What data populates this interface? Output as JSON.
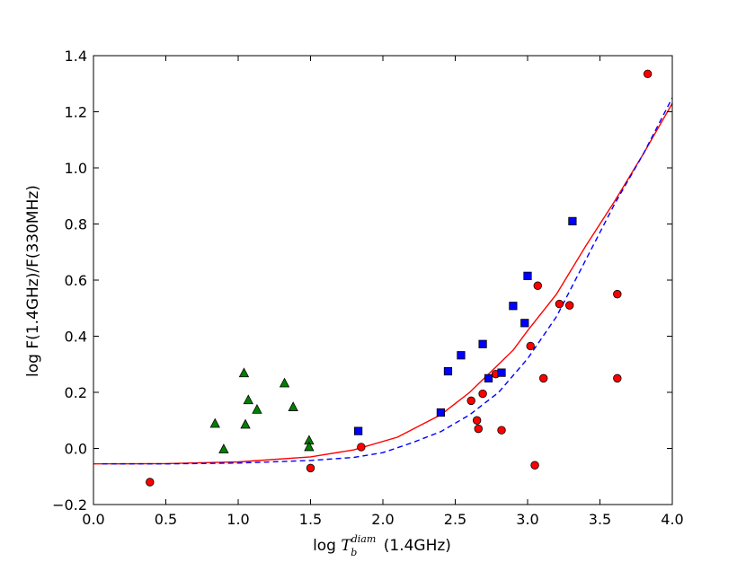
{
  "chart_data": {
    "type": "scatter",
    "xlabel_main": "log ",
    "xlabel_math": "T",
    "xlabel_sub": "b",
    "xlabel_sup": "diam",
    "xlabel_tail": " (1.4GHz)",
    "ylabel": "log F(1.4GHz)/F(330MHz)",
    "xlim": [
      0.0,
      4.0
    ],
    "ylim": [
      -0.2,
      1.4
    ],
    "xticks": [
      "0.0",
      "0.5",
      "1.0",
      "1.5",
      "2.0",
      "2.5",
      "3.0",
      "3.5",
      "4.0"
    ],
    "yticks": [
      "−0.2",
      "0.0",
      "0.2",
      "0.4",
      "0.6",
      "0.8",
      "1.0",
      "1.2",
      "1.4"
    ],
    "series": [
      {
        "marker": "circle",
        "color": "#ff0000",
        "points": [
          [
            0.39,
            -0.12
          ],
          [
            1.5,
            -0.07
          ],
          [
            1.85,
            0.005
          ],
          [
            2.61,
            0.17
          ],
          [
            2.65,
            0.1
          ],
          [
            2.66,
            0.07
          ],
          [
            2.69,
            0.195
          ],
          [
            2.78,
            0.265
          ],
          [
            2.82,
            0.065
          ],
          [
            3.02,
            0.365
          ],
          [
            3.05,
            -0.06
          ],
          [
            3.07,
            0.58
          ],
          [
            3.11,
            0.25
          ],
          [
            3.22,
            0.515
          ],
          [
            3.29,
            0.51
          ],
          [
            3.62,
            0.55
          ],
          [
            3.62,
            0.25
          ],
          [
            3.83,
            1.335
          ]
        ]
      },
      {
        "marker": "square",
        "color": "#0000ff",
        "points": [
          [
            1.83,
            0.062
          ],
          [
            2.4,
            0.128
          ],
          [
            2.45,
            0.275
          ],
          [
            2.54,
            0.332
          ],
          [
            2.69,
            0.372
          ],
          [
            2.73,
            0.25
          ],
          [
            2.82,
            0.27
          ],
          [
            2.9,
            0.508
          ],
          [
            2.98,
            0.447
          ],
          [
            3.0,
            0.615
          ],
          [
            3.31,
            0.81
          ]
        ]
      },
      {
        "marker": "triangle",
        "color": "#008000",
        "points": [
          [
            0.84,
            0.088
          ],
          [
            0.9,
            -0.003
          ],
          [
            1.04,
            0.268
          ],
          [
            1.05,
            0.085
          ],
          [
            1.07,
            0.172
          ],
          [
            1.13,
            0.138
          ],
          [
            1.32,
            0.232
          ],
          [
            1.38,
            0.147
          ],
          [
            1.49,
            0.028
          ],
          [
            1.49,
            0.005
          ]
        ]
      }
    ],
    "curves": [
      {
        "style": "solid",
        "color": "#ff0000",
        "points": [
          [
            0.0,
            -0.055
          ],
          [
            0.5,
            -0.054
          ],
          [
            1.0,
            -0.048
          ],
          [
            1.5,
            -0.03
          ],
          [
            1.8,
            -0.005
          ],
          [
            2.1,
            0.04
          ],
          [
            2.4,
            0.12
          ],
          [
            2.6,
            0.2
          ],
          [
            2.8,
            0.3
          ],
          [
            2.9,
            0.35
          ],
          [
            3.0,
            0.42
          ],
          [
            3.2,
            0.55
          ],
          [
            3.4,
            0.72
          ],
          [
            3.6,
            0.88
          ],
          [
            3.8,
            1.05
          ],
          [
            4.0,
            1.23
          ]
        ]
      },
      {
        "style": "dashed",
        "color": "#0000ff",
        "points": [
          [
            0.06,
            -0.055
          ],
          [
            0.5,
            -0.055
          ],
          [
            1.0,
            -0.052
          ],
          [
            1.5,
            -0.043
          ],
          [
            1.8,
            -0.032
          ],
          [
            2.0,
            -0.015
          ],
          [
            2.2,
            0.02
          ],
          [
            2.4,
            0.06
          ],
          [
            2.6,
            0.12
          ],
          [
            2.8,
            0.2
          ],
          [
            3.0,
            0.32
          ],
          [
            3.2,
            0.47
          ],
          [
            3.4,
            0.67
          ],
          [
            3.6,
            0.87
          ],
          [
            3.8,
            1.05
          ],
          [
            4.0,
            1.25
          ]
        ]
      }
    ]
  }
}
